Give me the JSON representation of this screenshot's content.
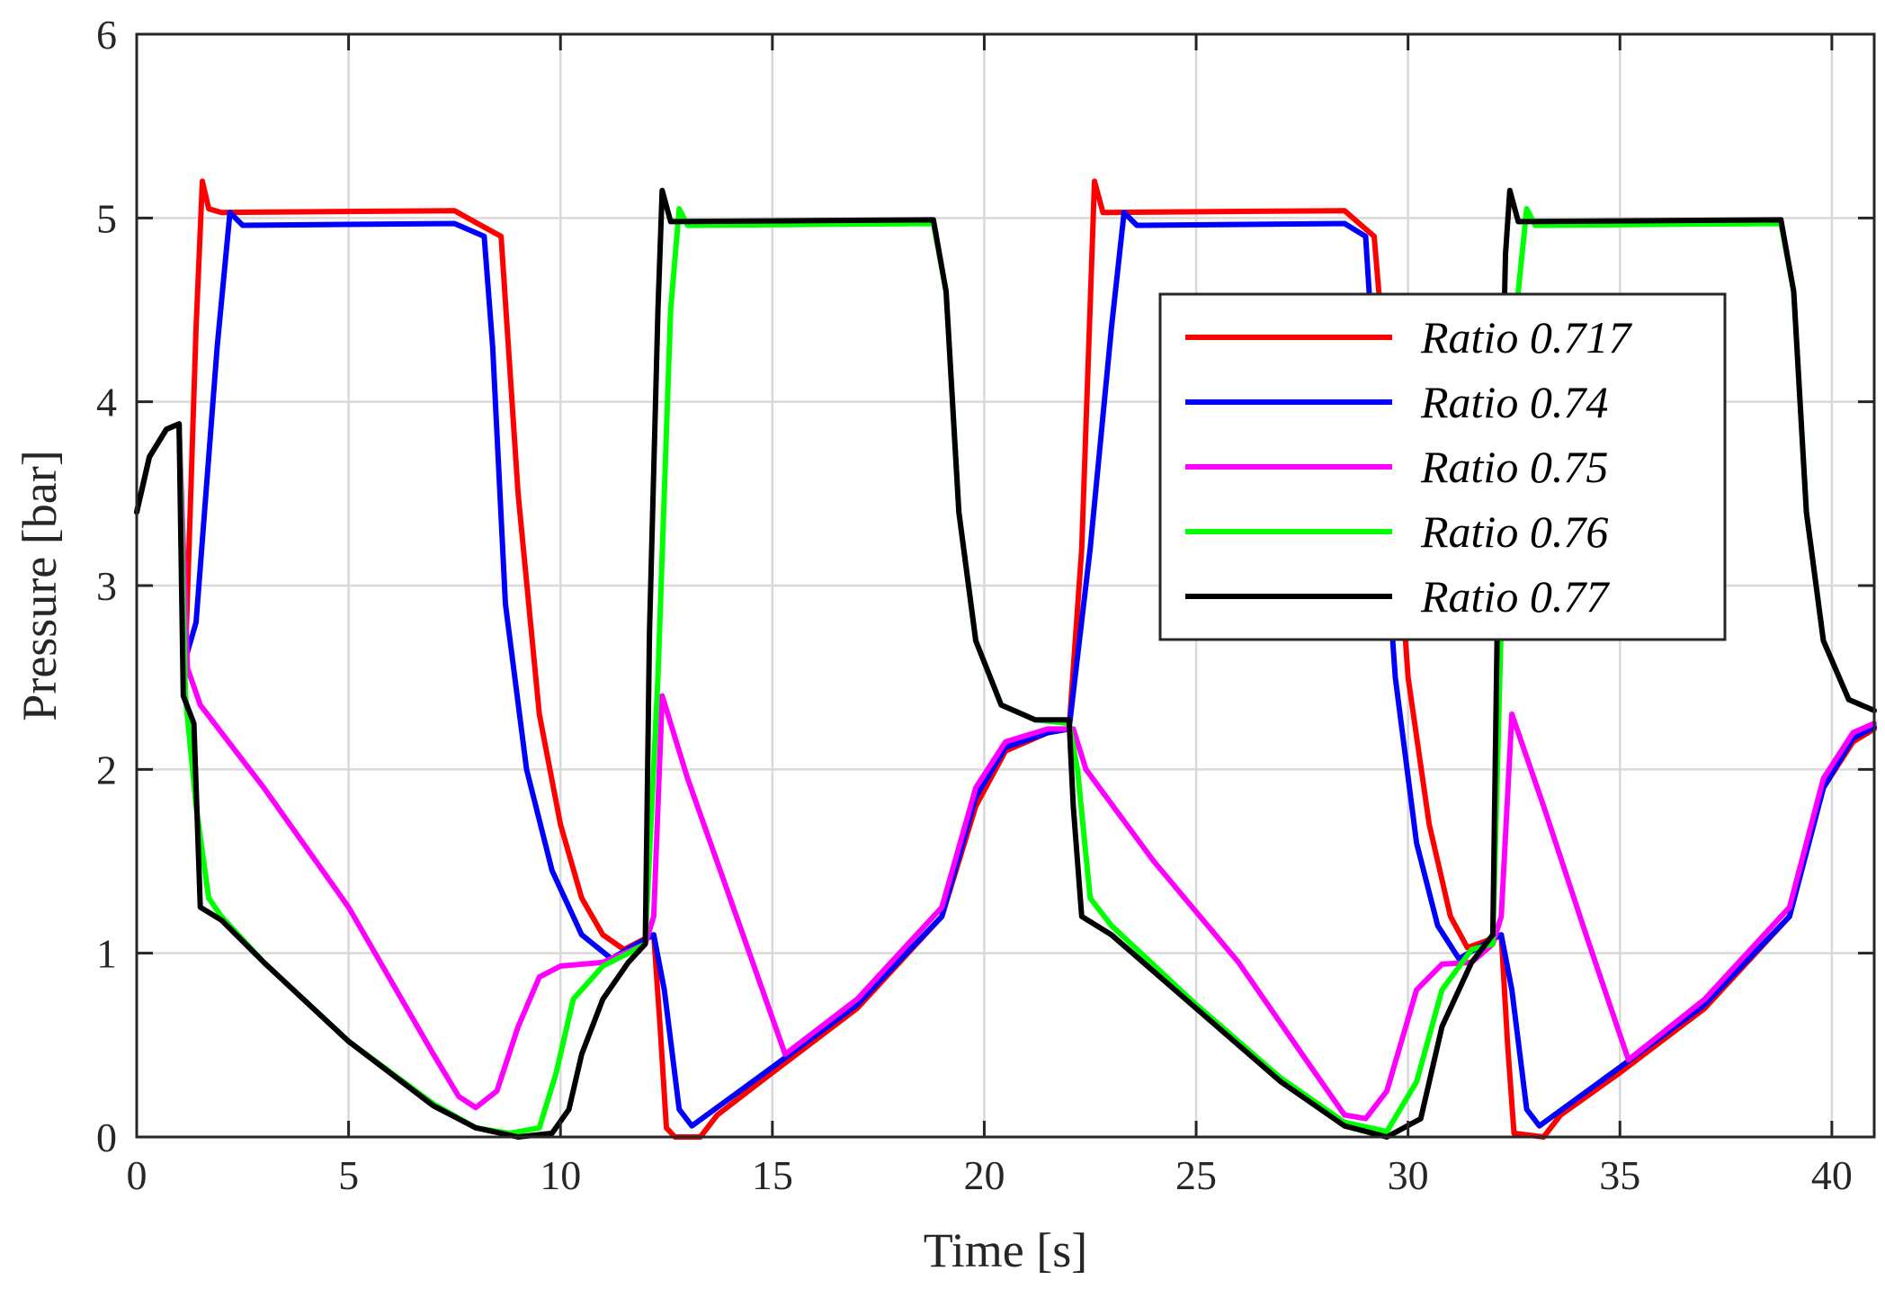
{
  "chart_data": {
    "type": "line",
    "title": "",
    "xlabel": "Time [s]",
    "ylabel": "Pressure [bar]",
    "xlim": [
      0,
      41
    ],
    "ylim": [
      0,
      6
    ],
    "xticks": [
      0,
      5,
      10,
      15,
      20,
      25,
      30,
      35,
      40
    ],
    "yticks": [
      0,
      1,
      2,
      3,
      4,
      5,
      6
    ],
    "grid": true,
    "legend_position": "upper-right",
    "series": [
      {
        "name": "Ratio 0.717",
        "color": "#ff0000",
        "points": [
          [
            0,
            3.4
          ],
          [
            0.3,
            3.7
          ],
          [
            0.7,
            3.85
          ],
          [
            1.0,
            3.88
          ],
          [
            1.15,
            2.6
          ],
          [
            1.4,
            4.4
          ],
          [
            1.55,
            5.2
          ],
          [
            1.7,
            5.05
          ],
          [
            2.0,
            5.03
          ],
          [
            7.5,
            5.04
          ],
          [
            8.2,
            4.95
          ],
          [
            8.6,
            4.9
          ],
          [
            9.0,
            3.5
          ],
          [
            9.5,
            2.3
          ],
          [
            10.0,
            1.7
          ],
          [
            10.5,
            1.3
          ],
          [
            11.0,
            1.1
          ],
          [
            11.5,
            1.02
          ],
          [
            12.0,
            1.08
          ],
          [
            12.2,
            1.1
          ],
          [
            12.35,
            0.6
          ],
          [
            12.5,
            0.05
          ],
          [
            12.7,
            0.0
          ],
          [
            13.3,
            0.0
          ],
          [
            13.7,
            0.12
          ],
          [
            15,
            0.35
          ],
          [
            17,
            0.7
          ],
          [
            19,
            1.2
          ],
          [
            19.8,
            1.8
          ],
          [
            20.5,
            2.1
          ],
          [
            21.5,
            2.2
          ],
          [
            22.0,
            2.22
          ],
          [
            22.3,
            3.2
          ],
          [
            22.6,
            5.2
          ],
          [
            22.8,
            5.03
          ],
          [
            28.5,
            5.04
          ],
          [
            29.2,
            4.9
          ],
          [
            29.6,
            3.8
          ],
          [
            30.0,
            2.5
          ],
          [
            30.5,
            1.7
          ],
          [
            31.0,
            1.2
          ],
          [
            31.4,
            1.03
          ],
          [
            32.0,
            1.08
          ],
          [
            32.2,
            1.1
          ],
          [
            32.35,
            0.5
          ],
          [
            32.5,
            0.02
          ],
          [
            33.2,
            0.0
          ],
          [
            33.6,
            0.12
          ],
          [
            35,
            0.35
          ],
          [
            37,
            0.7
          ],
          [
            39,
            1.2
          ],
          [
            39.8,
            1.9
          ],
          [
            40.5,
            2.15
          ],
          [
            41,
            2.22
          ]
        ]
      },
      {
        "name": "Ratio 0.74",
        "color": "#0000ff",
        "points": [
          [
            0,
            3.4
          ],
          [
            0.3,
            3.7
          ],
          [
            0.7,
            3.85
          ],
          [
            1.0,
            3.88
          ],
          [
            1.15,
            2.6
          ],
          [
            1.4,
            2.8
          ],
          [
            1.6,
            3.4
          ],
          [
            1.9,
            4.3
          ],
          [
            2.2,
            5.03
          ],
          [
            2.5,
            4.96
          ],
          [
            7.5,
            4.97
          ],
          [
            8.2,
            4.9
          ],
          [
            8.4,
            4.3
          ],
          [
            8.7,
            2.9
          ],
          [
            9.2,
            2.0
          ],
          [
            9.8,
            1.45
          ],
          [
            10.5,
            1.1
          ],
          [
            11.2,
            0.97
          ],
          [
            11.8,
            1.05
          ],
          [
            12.2,
            1.1
          ],
          [
            12.45,
            0.8
          ],
          [
            12.8,
            0.15
          ],
          [
            13.1,
            0.06
          ],
          [
            15,
            0.38
          ],
          [
            17,
            0.72
          ],
          [
            19,
            1.2
          ],
          [
            19.8,
            1.85
          ],
          [
            20.5,
            2.12
          ],
          [
            21.5,
            2.2
          ],
          [
            22.0,
            2.22
          ],
          [
            22.5,
            3.2
          ],
          [
            23.0,
            4.4
          ],
          [
            23.3,
            5.03
          ],
          [
            23.6,
            4.96
          ],
          [
            28.5,
            4.97
          ],
          [
            29.0,
            4.9
          ],
          [
            29.3,
            3.8
          ],
          [
            29.7,
            2.5
          ],
          [
            30.2,
            1.6
          ],
          [
            30.7,
            1.15
          ],
          [
            31.2,
            0.97
          ],
          [
            31.8,
            1.05
          ],
          [
            32.2,
            1.1
          ],
          [
            32.45,
            0.8
          ],
          [
            32.8,
            0.15
          ],
          [
            33.1,
            0.06
          ],
          [
            35,
            0.38
          ],
          [
            37,
            0.72
          ],
          [
            39,
            1.2
          ],
          [
            39.8,
            1.9
          ],
          [
            40.5,
            2.17
          ],
          [
            41,
            2.23
          ]
        ]
      },
      {
        "name": "Ratio 0.75",
        "color": "#ff00ff",
        "points": [
          [
            0,
            3.4
          ],
          [
            0.3,
            3.7
          ],
          [
            0.7,
            3.85
          ],
          [
            1.0,
            3.88
          ],
          [
            1.2,
            2.55
          ],
          [
            1.5,
            2.35
          ],
          [
            3,
            1.9
          ],
          [
            5,
            1.25
          ],
          [
            6,
            0.85
          ],
          [
            7,
            0.45
          ],
          [
            7.6,
            0.22
          ],
          [
            8.0,
            0.16
          ],
          [
            8.5,
            0.25
          ],
          [
            9.0,
            0.6
          ],
          [
            9.5,
            0.87
          ],
          [
            10.0,
            0.93
          ],
          [
            11.0,
            0.95
          ],
          [
            11.5,
            1.0
          ],
          [
            12.0,
            1.05
          ],
          [
            12.2,
            1.2
          ],
          [
            12.4,
            2.4
          ],
          [
            13.0,
            1.95
          ],
          [
            14.0,
            1.3
          ],
          [
            15.3,
            0.45
          ],
          [
            17,
            0.75
          ],
          [
            19,
            1.25
          ],
          [
            19.8,
            1.9
          ],
          [
            20.5,
            2.15
          ],
          [
            21.5,
            2.22
          ],
          [
            22.1,
            2.22
          ],
          [
            22.4,
            2.0
          ],
          [
            24,
            1.5
          ],
          [
            26,
            0.95
          ],
          [
            27.5,
            0.45
          ],
          [
            28.5,
            0.12
          ],
          [
            29.0,
            0.1
          ],
          [
            29.5,
            0.25
          ],
          [
            30.2,
            0.8
          ],
          [
            30.8,
            0.94
          ],
          [
            31.5,
            0.95
          ],
          [
            32.0,
            1.05
          ],
          [
            32.2,
            1.2
          ],
          [
            32.45,
            2.3
          ],
          [
            33.2,
            1.8
          ],
          [
            34.2,
            1.1
          ],
          [
            35.2,
            0.42
          ],
          [
            37,
            0.75
          ],
          [
            39,
            1.25
          ],
          [
            39.8,
            1.95
          ],
          [
            40.5,
            2.2
          ],
          [
            41,
            2.25
          ]
        ]
      },
      {
        "name": "Ratio 0.76",
        "color": "#00ff00",
        "points": [
          [
            0,
            3.4
          ],
          [
            0.3,
            3.7
          ],
          [
            0.7,
            3.85
          ],
          [
            1.0,
            3.88
          ],
          [
            1.15,
            2.4
          ],
          [
            1.4,
            1.8
          ],
          [
            1.7,
            1.3
          ],
          [
            2.0,
            1.2
          ],
          [
            3,
            0.95
          ],
          [
            5,
            0.52
          ],
          [
            7,
            0.18
          ],
          [
            8,
            0.05
          ],
          [
            8.8,
            0.02
          ],
          [
            9.5,
            0.05
          ],
          [
            9.9,
            0.35
          ],
          [
            10.3,
            0.75
          ],
          [
            11.0,
            0.93
          ],
          [
            11.6,
            1.0
          ],
          [
            12.0,
            1.05
          ],
          [
            12.3,
            2.5
          ],
          [
            12.6,
            4.5
          ],
          [
            12.8,
            5.05
          ],
          [
            13.0,
            4.96
          ],
          [
            18.8,
            4.97
          ],
          [
            19.1,
            4.6
          ],
          [
            19.4,
            3.4
          ],
          [
            19.8,
            2.7
          ],
          [
            20.4,
            2.35
          ],
          [
            21.2,
            2.27
          ],
          [
            22.0,
            2.25
          ],
          [
            22.2,
            2.0
          ],
          [
            22.5,
            1.3
          ],
          [
            23,
            1.15
          ],
          [
            25,
            0.72
          ],
          [
            27,
            0.32
          ],
          [
            28.5,
            0.08
          ],
          [
            29.5,
            0.03
          ],
          [
            30.2,
            0.3
          ],
          [
            30.8,
            0.8
          ],
          [
            31.5,
            1.02
          ],
          [
            32.0,
            1.05
          ],
          [
            32.2,
            2.8
          ],
          [
            32.6,
            4.6
          ],
          [
            32.8,
            5.05
          ],
          [
            33.0,
            4.96
          ],
          [
            38.8,
            4.97
          ],
          [
            39.1,
            4.6
          ],
          [
            39.4,
            3.4
          ],
          [
            39.8,
            2.7
          ],
          [
            40.4,
            2.38
          ],
          [
            41,
            2.32
          ]
        ]
      },
      {
        "name": "Ratio 0.77",
        "color": "#000000",
        "points": [
          [
            0,
            3.4
          ],
          [
            0.3,
            3.7
          ],
          [
            0.7,
            3.85
          ],
          [
            1.0,
            3.88
          ],
          [
            1.1,
            2.4
          ],
          [
            1.35,
            2.25
          ],
          [
            1.5,
            1.25
          ],
          [
            2.0,
            1.18
          ],
          [
            3,
            0.95
          ],
          [
            5,
            0.52
          ],
          [
            7,
            0.17
          ],
          [
            8,
            0.05
          ],
          [
            9,
            0.0
          ],
          [
            9.8,
            0.02
          ],
          [
            10.2,
            0.15
          ],
          [
            10.5,
            0.45
          ],
          [
            11.0,
            0.75
          ],
          [
            11.6,
            0.95
          ],
          [
            12.0,
            1.05
          ],
          [
            12.1,
            2.75
          ],
          [
            12.3,
            4.5
          ],
          [
            12.4,
            5.15
          ],
          [
            12.6,
            4.98
          ],
          [
            18.8,
            4.99
          ],
          [
            19.1,
            4.6
          ],
          [
            19.4,
            3.4
          ],
          [
            19.8,
            2.7
          ],
          [
            20.4,
            2.35
          ],
          [
            21.2,
            2.27
          ],
          [
            22.0,
            2.27
          ],
          [
            22.1,
            1.8
          ],
          [
            22.3,
            1.2
          ],
          [
            23,
            1.1
          ],
          [
            25,
            0.7
          ],
          [
            27,
            0.3
          ],
          [
            28.5,
            0.06
          ],
          [
            29.5,
            0.0
          ],
          [
            30.3,
            0.1
          ],
          [
            30.8,
            0.6
          ],
          [
            31.5,
            0.95
          ],
          [
            32.0,
            1.1
          ],
          [
            32.1,
            2.7
          ],
          [
            32.3,
            4.8
          ],
          [
            32.4,
            5.15
          ],
          [
            32.6,
            4.98
          ],
          [
            38.8,
            4.99
          ],
          [
            39.1,
            4.6
          ],
          [
            39.4,
            3.4
          ],
          [
            39.8,
            2.7
          ],
          [
            40.4,
            2.38
          ],
          [
            41,
            2.32
          ]
        ]
      }
    ]
  }
}
